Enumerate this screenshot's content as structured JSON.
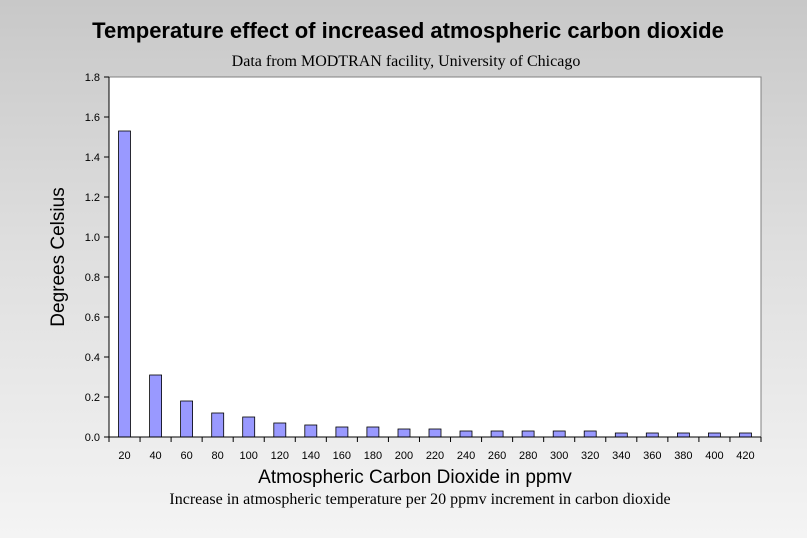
{
  "chart_data": {
    "type": "bar",
    "title": "Temperature effect of increased atmospheric carbon dioxide",
    "subtitle": "Data from MODTRAN facility, University of Chicago",
    "caption": "Increase in atmospheric temperature per 20 ppmv increment in carbon dioxide",
    "xlabel": "Atmospheric Carbon Dioxide in ppmv",
    "ylabel": "Degrees Celsius",
    "ylim": [
      0,
      1.8
    ],
    "yticks": [
      "0.0",
      "0.2",
      "0.4",
      "0.6",
      "0.8",
      "1.0",
      "1.2",
      "1.4",
      "1.6",
      "1.8"
    ],
    "categories": [
      "20",
      "40",
      "60",
      "80",
      "100",
      "120",
      "140",
      "160",
      "180",
      "200",
      "220",
      "240",
      "260",
      "280",
      "300",
      "320",
      "340",
      "360",
      "380",
      "400",
      "420"
    ],
    "values": [
      1.53,
      0.31,
      0.18,
      0.12,
      0.1,
      0.07,
      0.06,
      0.05,
      0.05,
      0.04,
      0.04,
      0.03,
      0.03,
      0.03,
      0.03,
      0.03,
      0.02,
      0.02,
      0.02,
      0.02,
      0.02
    ],
    "grid": false,
    "legend": "none",
    "colors": {
      "bar_fill": "#9999ff",
      "bar_stroke": "#000000",
      "plot_background": "#ffffff",
      "plot_border": "#808080"
    }
  }
}
